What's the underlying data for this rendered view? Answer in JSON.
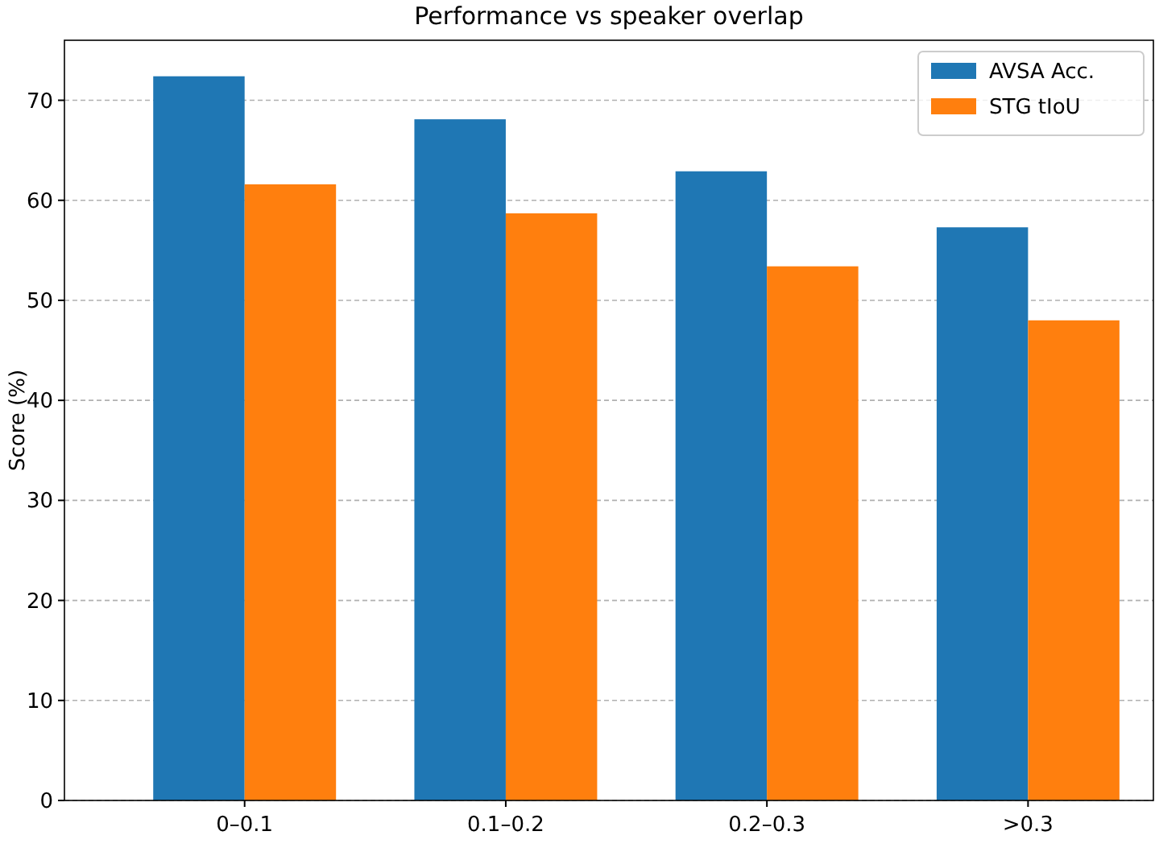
{
  "chart_data": {
    "type": "bar",
    "title": "Performance vs speaker overlap",
    "ylabel": "Score (%)",
    "categories": [
      "0–0.1",
      "0.1–0.2",
      "0.2–0.3",
      ">0.3"
    ],
    "series": [
      {
        "name": "AVSA Acc.",
        "color": "#1f77b4",
        "values": [
          72.4,
          68.1,
          62.9,
          57.3
        ]
      },
      {
        "name": "STG tIoU",
        "color": "#ff7f0e",
        "values": [
          61.6,
          58.7,
          53.4,
          48.0
        ]
      }
    ],
    "ylim": [
      0,
      76
    ],
    "yticks": [
      0,
      10,
      20,
      30,
      40,
      50,
      60,
      70
    ],
    "grid": "y",
    "legend": "top right"
  }
}
